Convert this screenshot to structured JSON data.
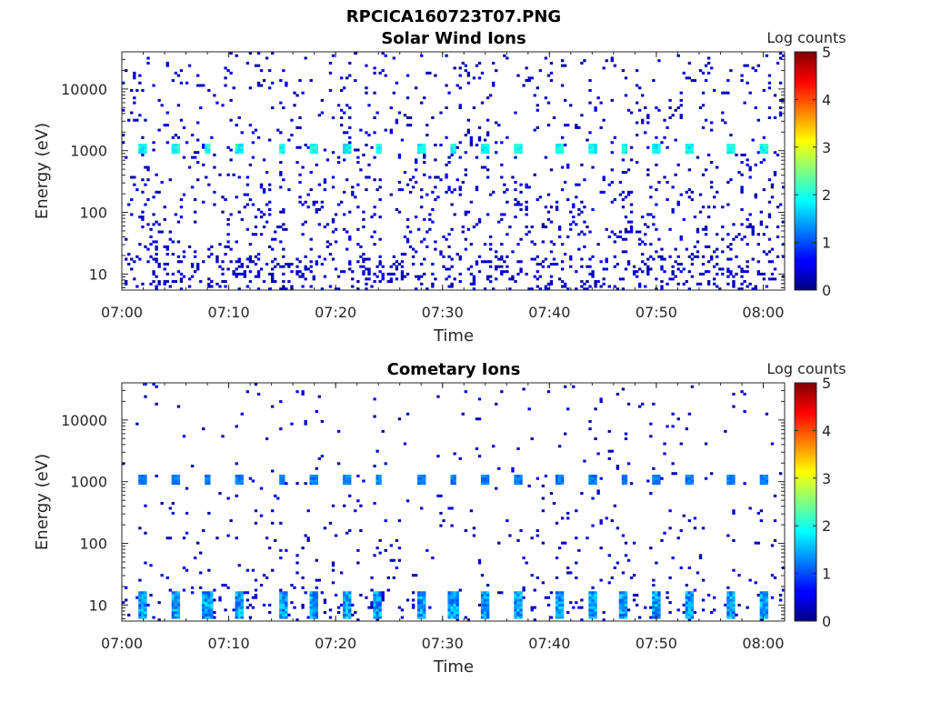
{
  "figure": {
    "title": "RPCICA160723T07.PNG"
  },
  "chart_data": [
    {
      "type": "heatmap",
      "title": "Solar Wind Ions",
      "xlabel": "Time",
      "ylabel": "Energy (eV)",
      "x_start": "07:00",
      "x_end": "08:02",
      "x_ticks": [
        "07:00",
        "07:10",
        "07:20",
        "07:30",
        "07:40",
        "07:50",
        "08:00"
      ],
      "y_scale": "log",
      "ylim": [
        5.5,
        40000
      ],
      "y_ticks": [
        10,
        100,
        1000,
        10000
      ],
      "y_tick_labels": [
        "10",
        "100",
        "1000",
        "10000"
      ],
      "colorbar": {
        "label": "Log counts",
        "range": [
          0,
          5
        ],
        "ticks": [
          "0",
          "1",
          "2",
          "3",
          "4",
          "5"
        ],
        "colormap": "jet"
      },
      "peak_times": [
        "07:02",
        "07:05",
        "07:08",
        "07:11",
        "07:15",
        "07:18",
        "07:21",
        "07:24",
        "07:28",
        "07:31",
        "07:34",
        "07:37",
        "07:41",
        "07:44",
        "07:47",
        "07:50",
        "07:53",
        "07:57",
        "08:00"
      ],
      "peak_energy_ev": 1100,
      "peak_level": 2.2,
      "background_level": 0.3,
      "noise_density": 1.0
    },
    {
      "type": "heatmap",
      "title": "Cometary Ions",
      "xlabel": "Time",
      "ylabel": "Energy (eV)",
      "x_start": "07:00",
      "x_end": "08:02",
      "x_ticks": [
        "07:00",
        "07:10",
        "07:20",
        "07:30",
        "07:40",
        "07:50",
        "08:00"
      ],
      "y_scale": "log",
      "ylim": [
        5.5,
        40000
      ],
      "y_ticks": [
        10,
        100,
        1000,
        10000
      ],
      "y_tick_labels": [
        "10",
        "100",
        "1000",
        "10000"
      ],
      "colorbar": {
        "label": "Log counts",
        "range": [
          0,
          5
        ],
        "ticks": [
          "0",
          "1",
          "2",
          "3",
          "4",
          "5"
        ],
        "colormap": "jet"
      },
      "peak_times": [
        "07:02",
        "07:05",
        "07:08",
        "07:11",
        "07:15",
        "07:18",
        "07:21",
        "07:24",
        "07:28",
        "07:31",
        "07:34",
        "07:37",
        "07:41",
        "07:44",
        "07:47",
        "07:50",
        "07:53",
        "07:57",
        "08:00"
      ],
      "peak_energy_ev": 1100,
      "peak_level": 1.4,
      "low_energy_peak_ev": 10,
      "low_energy_peak_level": 1.8,
      "background_level": 0.3,
      "noise_density": 0.35
    }
  ]
}
